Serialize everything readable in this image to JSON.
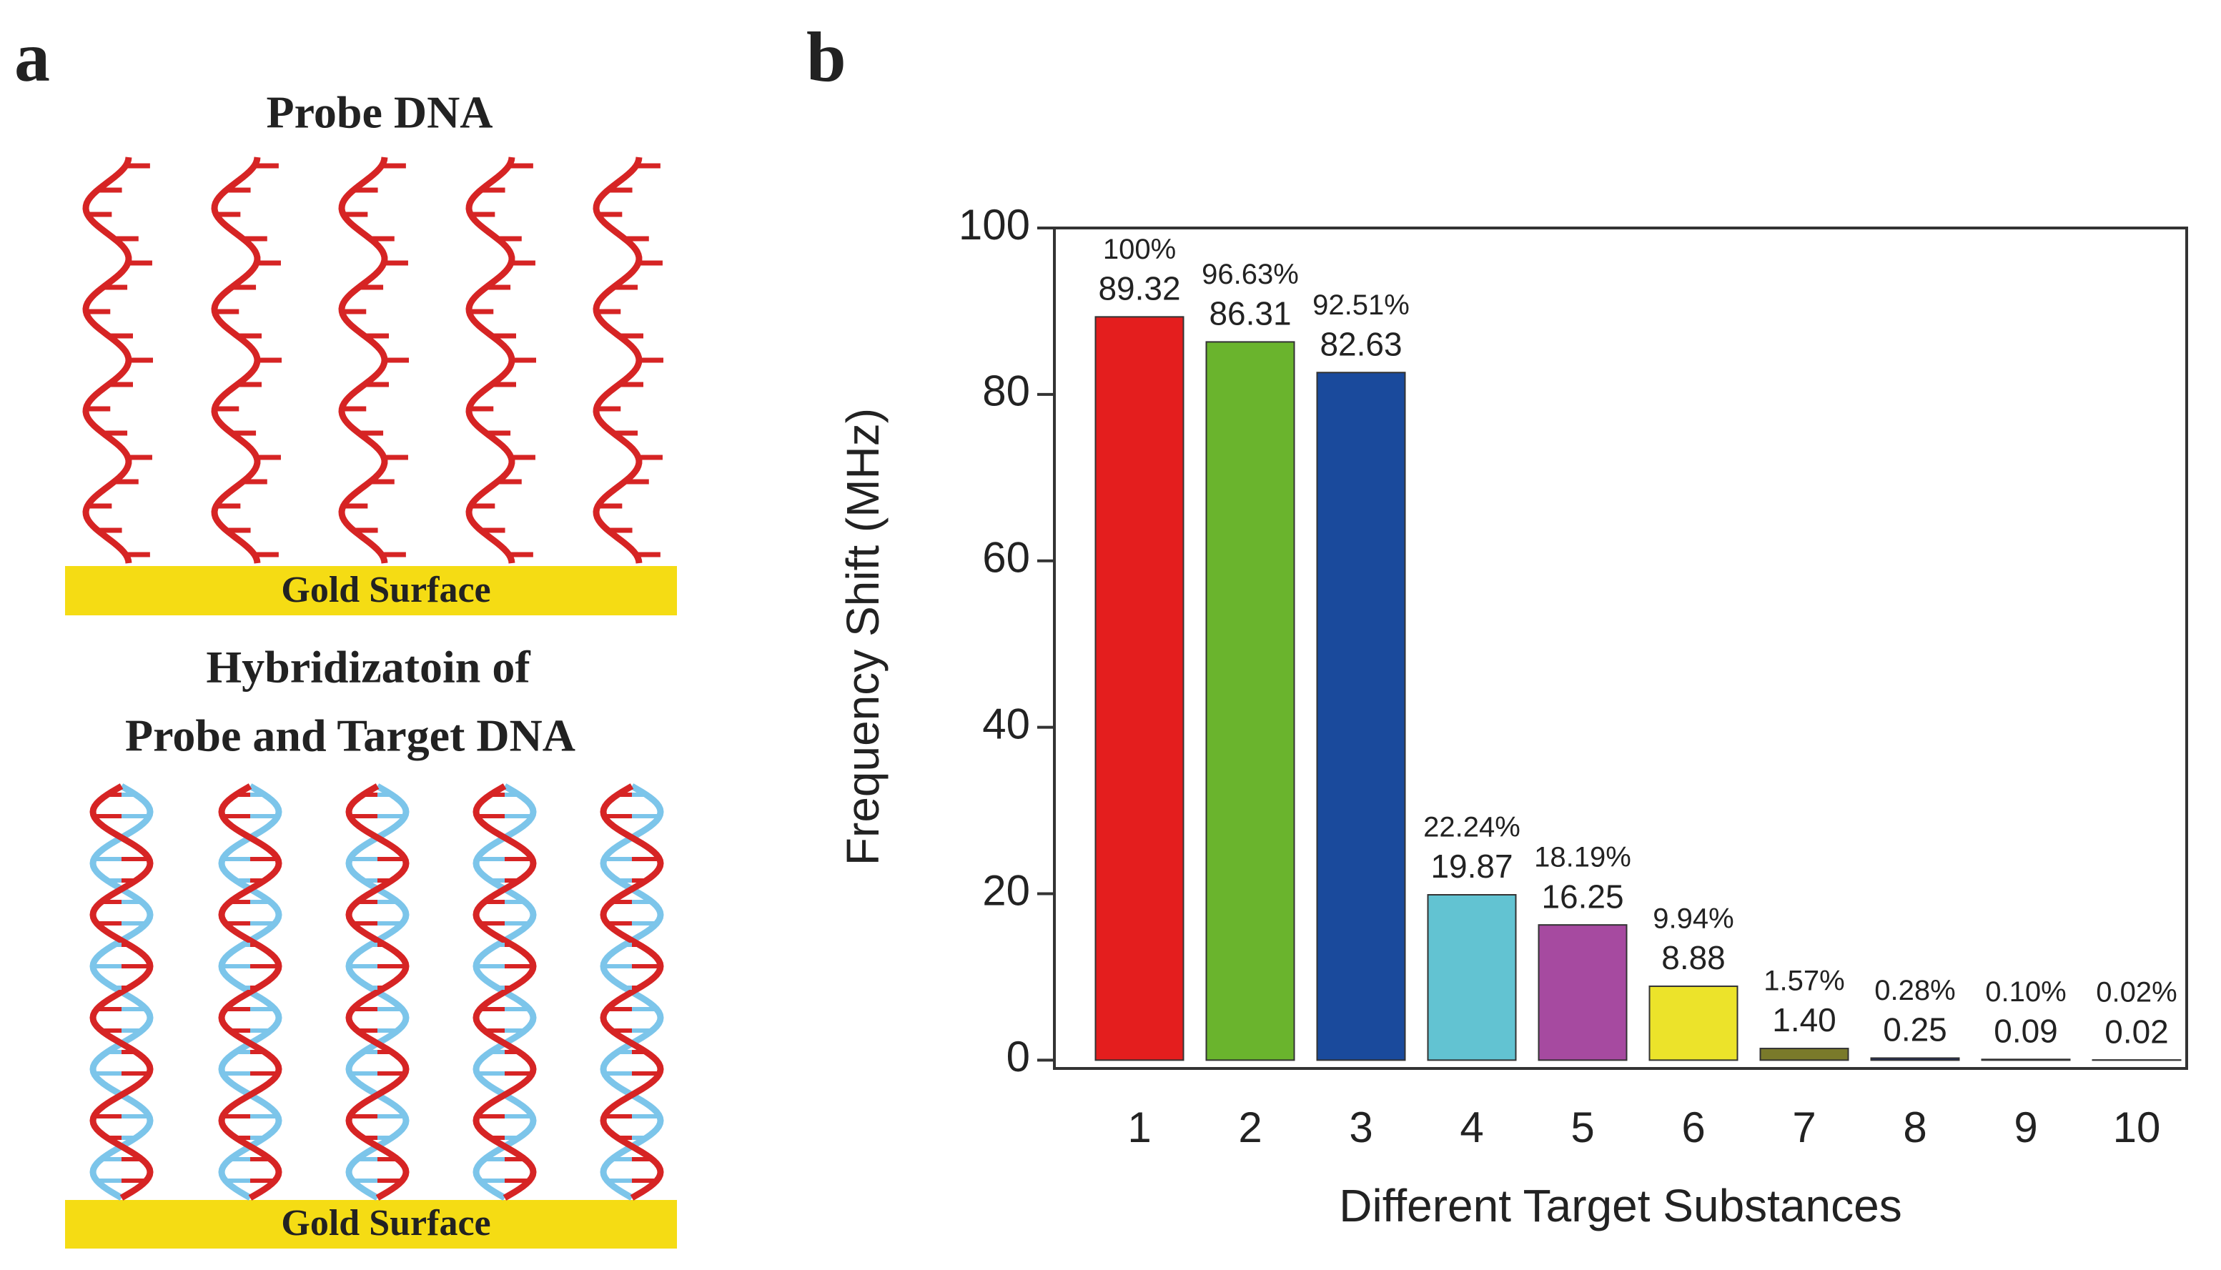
{
  "panel_labels": [
    "a",
    "b"
  ],
  "diagram": {
    "probe_title": "Probe DNA",
    "hybrid_title": [
      "Hybridizatoin of",
      "Probe and Target DNA"
    ],
    "surface_label": "Gold Surface"
  },
  "chart_data": {
    "type": "bar",
    "xlabel": "Different Target Substances",
    "ylabel": "Frequency Shift (MHz)",
    "categories": [
      "1",
      "2",
      "3",
      "4",
      "5",
      "6",
      "7",
      "8",
      "9",
      "10"
    ],
    "values": [
      89.32,
      86.31,
      82.63,
      19.87,
      16.25,
      8.88,
      1.4,
      0.25,
      0.09,
      0.02
    ],
    "value_labels": [
      "89.32",
      "86.31",
      "82.63",
      "19.87",
      "16.25",
      "8.88",
      "1.40",
      "0.25",
      "0.09",
      "0.02"
    ],
    "percent_labels": [
      "100%",
      "96.63%",
      "92.51%",
      "22.24%",
      "18.19%",
      "9.94%",
      "1.57%",
      "0.28%",
      "0.10%",
      "0.02%"
    ],
    "colors": [
      "#e41e1e",
      "#6ab42d",
      "#1a4a9c",
      "#62c3d2",
      "#a64aa0",
      "#ece32a",
      "#7a7a2a",
      "#1c2a6a",
      "#7a2a8a",
      "#8a1a1a"
    ],
    "ylim": [
      -1,
      100
    ],
    "yticks": [
      0,
      20,
      40,
      60,
      80,
      100
    ]
  }
}
